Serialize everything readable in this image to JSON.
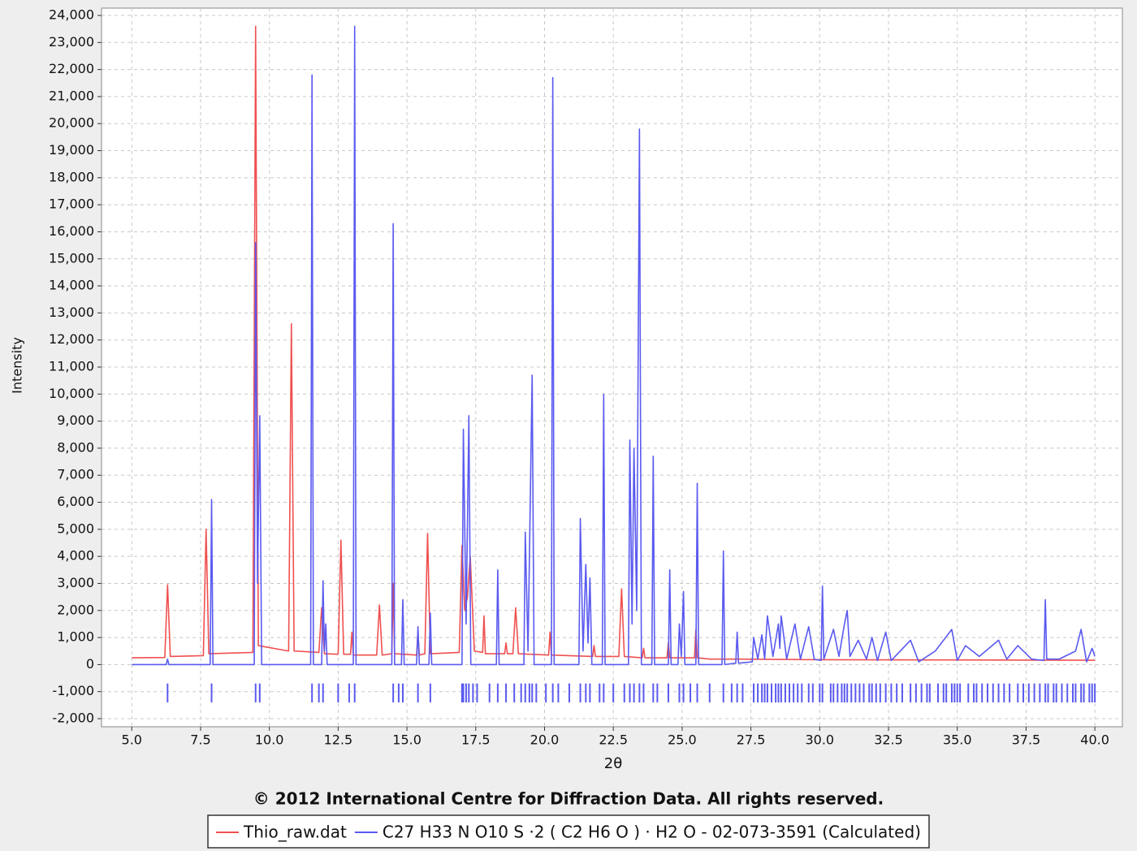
{
  "chart_data": {
    "type": "line",
    "caption": "© 2012 International Centre for Diffraction Data. All rights reserved.",
    "x_label": "2θ",
    "y_label": "Intensity",
    "xlim": [
      3.9,
      41.0
    ],
    "ylim": [
      -2300,
      24270
    ],
    "grid": true,
    "legend": "bottom",
    "xticks": [
      {
        "value": 5,
        "label": "5.0"
      },
      {
        "value": 7.5,
        "label": "7.5"
      },
      {
        "value": 10,
        "label": "10.0"
      },
      {
        "value": 12.5,
        "label": "12.5"
      },
      {
        "value": 15,
        "label": "15.0"
      },
      {
        "value": 17.5,
        "label": "17.5"
      },
      {
        "value": 20,
        "label": "20.0"
      },
      {
        "value": 22.5,
        "label": "22.5"
      },
      {
        "value": 25,
        "label": "25.0"
      },
      {
        "value": 27.5,
        "label": "27.5"
      },
      {
        "value": 30,
        "label": "30.0"
      },
      {
        "value": 32.5,
        "label": "32.5"
      },
      {
        "value": 35,
        "label": "35.0"
      },
      {
        "value": 37.5,
        "label": "37.5"
      },
      {
        "value": 40,
        "label": "40.0"
      }
    ],
    "yticks": [
      {
        "value": 24000,
        "label": "24,000"
      },
      {
        "value": 23000,
        "label": "23,000"
      },
      {
        "value": 22000,
        "label": "22,000"
      },
      {
        "value": 21000,
        "label": "21,000"
      },
      {
        "value": 20000,
        "label": "20,000"
      },
      {
        "value": 19000,
        "label": "19,000"
      },
      {
        "value": 18000,
        "label": "18,000"
      },
      {
        "value": 17000,
        "label": "17,000"
      },
      {
        "value": 16000,
        "label": "16,000"
      },
      {
        "value": 15000,
        "label": "15,000"
      },
      {
        "value": 14000,
        "label": "14,000"
      },
      {
        "value": 13000,
        "label": "13,000"
      },
      {
        "value": 12000,
        "label": "12,000"
      },
      {
        "value": 11000,
        "label": "11,000"
      },
      {
        "value": 10000,
        "label": "10,000"
      },
      {
        "value": 9000,
        "label": "9,000"
      },
      {
        "value": 8000,
        "label": "8,000"
      },
      {
        "value": 7000,
        "label": "7,000"
      },
      {
        "value": 6000,
        "label": "6,000"
      },
      {
        "value": 5000,
        "label": "5,000"
      },
      {
        "value": 4000,
        "label": "4,000"
      },
      {
        "value": 3000,
        "label": "3,000"
      },
      {
        "value": 2000,
        "label": "2,000"
      },
      {
        "value": 1000,
        "label": "1,000"
      },
      0,
      {
        "value": -1000,
        "label": "-1,000"
      },
      {
        "value": -2000,
        "label": "-2,000"
      }
    ],
    "series": [
      {
        "name": "Thio_raw.dat",
        "color": "#f05050",
        "x": [
          5.0,
          6.2,
          6.3,
          6.4,
          7.6,
          7.7,
          7.8,
          9.4,
          9.5,
          9.6,
          10.7,
          10.8,
          10.9,
          11.8,
          11.9,
          12.0,
          12.5,
          12.6,
          12.7,
          12.95,
          13.0,
          13.05,
          13.9,
          14.0,
          14.1,
          14.45,
          14.5,
          14.55,
          15.35,
          15.4,
          15.45,
          15.65,
          15.75,
          15.85,
          16.9,
          17.0,
          17.1,
          17.2,
          17.3,
          17.45,
          17.75,
          17.8,
          17.85,
          18.55,
          18.6,
          18.65,
          18.85,
          18.95,
          19.05,
          20.15,
          20.2,
          20.25,
          21.75,
          21.8,
          21.85,
          22.7,
          22.8,
          22.9,
          23.55,
          23.6,
          23.65,
          24.45,
          24.5,
          24.55,
          25.45,
          25.5,
          25.55,
          26.0,
          27.0,
          30.0,
          35.0,
          40.0
        ],
        "values": [
          250,
          260,
          2950,
          300,
          330,
          5000,
          400,
          450,
          23600,
          700,
          500,
          12600,
          500,
          450,
          2100,
          400,
          380,
          4600,
          380,
          380,
          1200,
          350,
          350,
          2200,
          350,
          400,
          3000,
          400,
          350,
          1200,
          350,
          400,
          4850,
          400,
          450,
          4400,
          2000,
          2500,
          4000,
          500,
          450,
          1800,
          400,
          400,
          800,
          400,
          400,
          2100,
          400,
          350,
          1200,
          350,
          300,
          700,
          300,
          300,
          2800,
          300,
          250,
          600,
          250,
          250,
          800,
          250,
          250,
          1300,
          250,
          200,
          200,
          180,
          170,
          160
        ]
      },
      {
        "name": "C27 H33 N O10 S ·2 ( C2 H6 O ) · H2 O - 02-073-3591 (Calculated)",
        "color": "#5a5af0",
        "x": [
          5.0,
          6.25,
          6.3,
          6.35,
          7.85,
          7.9,
          7.95,
          9.45,
          9.5,
          9.57,
          9.65,
          9.72,
          11.5,
          11.55,
          11.6,
          11.9,
          11.95,
          12.0,
          12.05,
          12.1,
          13.05,
          13.1,
          13.15,
          14.45,
          14.5,
          14.55,
          14.8,
          14.85,
          14.9,
          15.35,
          15.4,
          15.45,
          15.8,
          15.85,
          15.9,
          17.0,
          17.05,
          17.15,
          17.25,
          17.32,
          18.25,
          18.3,
          18.35,
          19.25,
          19.3,
          19.4,
          19.55,
          19.62,
          20.25,
          20.3,
          20.35,
          21.25,
          21.3,
          21.4,
          21.5,
          21.58,
          21.65,
          21.72,
          22.1,
          22.15,
          22.2,
          23.05,
          23.1,
          23.18,
          23.25,
          23.35,
          23.45,
          23.52,
          23.9,
          23.95,
          24.0,
          24.5,
          24.55,
          24.6,
          24.85,
          24.9,
          24.97,
          25.05,
          25.1,
          25.5,
          25.55,
          25.6,
          26.45,
          26.5,
          26.55,
          26.95,
          27.0,
          27.05,
          27.55,
          27.6,
          27.75,
          27.9,
          28.0,
          28.1,
          28.3,
          28.5,
          28.55,
          28.6,
          28.8,
          29.1,
          29.3,
          29.6,
          29.8,
          30.05,
          30.1,
          30.15,
          30.5,
          30.7,
          30.9,
          31.0,
          31.1,
          31.4,
          31.7,
          31.9,
          32.1,
          32.4,
          32.6,
          33.3,
          33.6,
          34.2,
          34.8,
          35.0,
          35.3,
          35.8,
          36.5,
          36.8,
          37.2,
          37.7,
          38.15,
          38.2,
          38.25,
          38.7,
          39.3,
          39.5,
          39.7,
          39.9,
          40.0
        ],
        "values": [
          0,
          0,
          200,
          0,
          0,
          6100,
          0,
          0,
          15600,
          3000,
          9200,
          0,
          0,
          21800,
          0,
          0,
          3100,
          500,
          1500,
          0,
          0,
          23600,
          0,
          0,
          16300,
          0,
          0,
          2400,
          0,
          0,
          1400,
          0,
          0,
          1900,
          0,
          0,
          8700,
          1500,
          9200,
          0,
          0,
          3500,
          0,
          0,
          4900,
          500,
          10700,
          0,
          0,
          21700,
          0,
          0,
          5400,
          500,
          3700,
          800,
          3200,
          0,
          0,
          10000,
          0,
          0,
          8300,
          1500,
          8000,
          2000,
          19800,
          0,
          0,
          7700,
          0,
          0,
          3500,
          0,
          0,
          1500,
          300,
          2700,
          0,
          0,
          6700,
          0,
          0,
          4200,
          0,
          50,
          1200,
          50,
          100,
          1000,
          200,
          1100,
          200,
          1800,
          300,
          1500,
          600,
          1800,
          200,
          1500,
          200,
          1400,
          200,
          150,
          2900,
          200,
          1300,
          300,
          1500,
          2000,
          300,
          900,
          200,
          1000,
          150,
          1200,
          150,
          900,
          100,
          500,
          1300,
          150,
          700,
          300,
          900,
          200,
          700,
          200,
          150,
          2400,
          200,
          200,
          500,
          1300,
          100,
          600,
          300
        ],
        "reference_peaks": [
          6.3,
          7.9,
          9.5,
          9.65,
          11.55,
          11.8,
          11.95,
          12.5,
          12.9,
          13.1,
          14.5,
          14.7,
          14.85,
          15.4,
          15.85,
          17.0,
          17.05,
          17.15,
          17.25,
          17.4,
          17.55,
          18.0,
          18.3,
          18.6,
          18.9,
          19.15,
          19.3,
          19.45,
          19.55,
          19.7,
          20.05,
          20.3,
          20.5,
          20.9,
          21.3,
          21.5,
          21.65,
          22.0,
          22.15,
          22.5,
          22.9,
          23.1,
          23.25,
          23.45,
          23.6,
          23.95,
          24.1,
          24.5,
          24.9,
          25.05,
          25.3,
          25.55,
          26.0,
          26.5,
          26.8,
          27.0,
          27.2,
          27.6,
          27.75,
          27.9,
          28.0,
          28.1,
          28.25,
          28.4,
          28.5,
          28.6,
          28.75,
          28.9,
          29.05,
          29.2,
          29.35,
          29.6,
          29.75,
          30.0,
          30.1,
          30.4,
          30.5,
          30.65,
          30.8,
          30.9,
          31.0,
          31.15,
          31.3,
          31.45,
          31.6,
          31.8,
          31.9,
          32.05,
          32.2,
          32.4,
          32.6,
          32.8,
          33.0,
          33.3,
          33.5,
          33.7,
          33.9,
          34.0,
          34.3,
          34.5,
          34.6,
          34.8,
          34.9,
          35.0,
          35.1,
          35.4,
          35.6,
          35.7,
          35.9,
          36.1,
          36.3,
          36.5,
          36.7,
          36.9,
          37.2,
          37.4,
          37.6,
          37.8,
          38.0,
          38.2,
          38.3,
          38.5,
          38.6,
          38.8,
          39.0,
          39.2,
          39.3,
          39.5,
          39.6,
          39.8,
          39.9,
          40.0
        ]
      }
    ]
  }
}
